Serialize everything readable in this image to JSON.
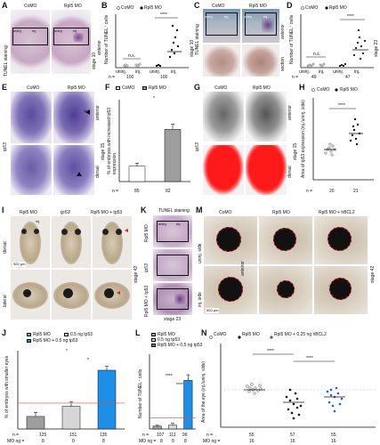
{
  "panels": {
    "A": {
      "letter": "A",
      "side_label": "TUNEL staining",
      "col1": "CoMO",
      "col2": "Rpl5 MO",
      "stage": "stage 10",
      "anterior": "anterior",
      "uninj": "uninj.",
      "inj": "inj."
    },
    "B": {
      "letter": "B",
      "legend": [
        "CoMO",
        "Rpl5 MO"
      ],
      "ylabel": "Number of TUNEL⁺ cells",
      "stage": "stage 10",
      "n_label": "n =",
      "n_values": [
        "100",
        "100"
      ],
      "x_ticks": [
        "uninj.",
        "inj.",
        "uninj.",
        "inj."
      ],
      "sig": [
        "n.s.",
        "****"
      ]
    },
    "C": {
      "letter": "C",
      "col1": "CoMO",
      "col2": "Rpl5 MO",
      "side_label": "TUNEL staining",
      "uninj": "uninj.",
      "inj": "inj.",
      "section": "section",
      "anterior": "anterior"
    },
    "D": {
      "letter": "D",
      "legend": [
        "CoMO",
        "Rpl5 MO"
      ],
      "ylabel": "Number of TUNEL⁺ cells",
      "stage": "stage 23",
      "n_label": "n =",
      "n_values": [
        "49",
        "47"
      ],
      "x_ticks": [
        "uninj.",
        "inj.",
        "uninj.",
        "inj."
      ],
      "sig": [
        "n.s.",
        "****"
      ]
    },
    "E": {
      "letter": "E",
      "col1": "CoMO",
      "col2": "Rpl5 MO",
      "gene": "tp53",
      "stage": "stage 15",
      "anterior": "anterior",
      "dorsal": "dorsal",
      "inj": "inj."
    },
    "F": {
      "letter": "F",
      "legend": [
        "CoMO",
        "Rpl5 MO"
      ],
      "ylabel": "% of embryos with increased tp53 expression",
      "n_label": "n =",
      "n_values": [
        "85",
        "82"
      ],
      "sig": "*"
    },
    "G": {
      "letter": "G",
      "col1": "CoMO",
      "col2": "Rpl5 MO",
      "gene": "tp53",
      "stage": "stage 15",
      "anterior": "anterior",
      "dorsal": "dorsal"
    },
    "H": {
      "letter": "H",
      "legend": [
        "CoMO",
        "Rpl5 MO"
      ],
      "ylabel": "Area of tp53 expression (inj./uninj. side)",
      "n_label": "n =",
      "n_values": [
        "20",
        "21"
      ],
      "sig": "****"
    },
    "I": {
      "letter": "I",
      "col1": "Rpl5 MO",
      "col2": "tp53",
      "col3": "Rpl5 MO + tp53",
      "row1": "dorsal",
      "row2": "lateral",
      "stage": "stage 42",
      "scale": "500 µm",
      "inj": "inj."
    },
    "K": {
      "letter": "K",
      "title": "TUNEL staining",
      "rows": [
        "Rpl5 MO",
        "tp53",
        "Rpl5 MO + tp53"
      ],
      "stage": "stage 23",
      "uninj": "uninj.",
      "inj": "inj."
    },
    "M": {
      "letter": "M",
      "col1": "CoMO",
      "col2": "Rpl5 MO",
      "col3": "Rpl5 MO + hBCL2",
      "row1": "uninj. side",
      "row2": "inj. side",
      "stage": "stage 42",
      "anterior": "anterior",
      "scale": "500 µm"
    },
    "J": {
      "letter": "J",
      "ylabel": "% of embryos with smaller eyes",
      "legend": [
        "Rpl5 MO",
        "0.5 ng tp53",
        "Rpl5 MO + 0.5 ng tp53"
      ],
      "n_label": "n =",
      "n_values": [
        "125",
        "151",
        "135"
      ],
      "mo_label": "MO ng =",
      "mo_values": [
        "8",
        "0",
        "8"
      ],
      "sig": [
        "*",
        "*"
      ]
    },
    "L": {
      "letter": "L",
      "ylabel": "Number of TUNEL⁺ cells",
      "legend": [
        "Rpl5 MO",
        "0.5 ng tp53",
        "Rpl5 MO + 0.5 ng tp53"
      ],
      "n_label": "n =",
      "n_values": [
        "107",
        "111",
        "99"
      ],
      "mo_label": "MO ng =",
      "mo_values": [
        "8",
        "0",
        "8"
      ],
      "sig": [
        "****",
        "****"
      ]
    },
    "N": {
      "letter": "N",
      "legend": [
        "CoMO",
        "Rpl5 MO",
        "Rpl5 MO + 0.25 ng hBCL2"
      ],
      "ylabel": "Area of the eye (inj./uninj. side)",
      "n_label": "n =",
      "n_values": [
        "55",
        "57",
        "55"
      ],
      "mo_label": "MO ng =",
      "mo_values": [
        "16",
        "16",
        "16"
      ],
      "sig": [
        "****",
        "****"
      ]
    }
  },
  "colors": {
    "como": "#ffffff",
    "rpl5": "#9e9e9e",
    "tp53": "#d6d6d6",
    "combo": "#1e8fe8",
    "sig_red": "#e34a33",
    "dashed_red": "#e02020",
    "mask_red": "#ff1a1a"
  },
  "chart_data": [
    {
      "panel": "F",
      "type": "bar",
      "categories": [
        "CoMO",
        "Rpl5 MO"
      ],
      "values": [
        15,
        51
      ],
      "errors": [
        3,
        5
      ],
      "ylabel": "% of embryos with increased tp53 expression",
      "ylim": [
        0,
        80
      ],
      "n": [
        "85",
        "82"
      ]
    },
    {
      "panel": "J",
      "type": "bar",
      "categories": [
        "Rpl5 MO",
        "0.5 ng tp53",
        "Rpl5 MO + 0.5 ng tp53"
      ],
      "values": [
        16,
        29,
        75
      ],
      "errors": [
        5,
        6,
        5
      ],
      "ylabel": "% of embryos with smaller eyes",
      "ylim": [
        0,
        100
      ],
      "n": [
        "125",
        "151",
        "135"
      ],
      "mo_ng": [
        "8",
        "0",
        "8"
      ]
    },
    {
      "panel": "L",
      "type": "bar",
      "categories": [
        "Rpl5 MO",
        "0.5 ng tp53",
        "Rpl5 MO + 0.5 ng tp53"
      ],
      "values": [
        0.3,
        0.4,
        5.2
      ],
      "errors": [
        0.1,
        0.2,
        0.6
      ],
      "ylabel": "Number of TUNEL⁺ cells",
      "ylim": [
        0,
        8
      ],
      "n": [
        "107",
        "111",
        "99"
      ],
      "mo_ng": [
        "8",
        "0",
        "8"
      ]
    },
    {
      "panel": "H",
      "type": "scatter",
      "categories": [
        "CoMO",
        "Rpl5 MO"
      ],
      "means": [
        0.95,
        1.35
      ],
      "ylabel": "Area of tp53 expression (inj./uninj. side)",
      "ylim": [
        0.0,
        2.0
      ],
      "n": [
        "20",
        "21"
      ]
    },
    {
      "panel": "N",
      "type": "scatter",
      "categories": [
        "CoMO",
        "Rpl5 MO",
        "Rpl5 MO + 0.25 ng hBCL2"
      ],
      "means": [
        1.0,
        0.78,
        0.86
      ],
      "ylabel": "Area of the eye (inj./uninj. side)",
      "ylim": [
        0.0,
        1.5
      ],
      "n": [
        "55",
        "57",
        "55"
      ]
    },
    {
      "panel": "B",
      "type": "scatter",
      "categories": [
        "CoMO uninj.",
        "CoMO inj.",
        "Rpl5 MO uninj.",
        "Rpl5 MO inj."
      ],
      "means": [
        3,
        4,
        3,
        40
      ],
      "ylabel": "Number of TUNEL⁺ cells",
      "ylim": [
        0,
        120
      ]
    },
    {
      "panel": "D",
      "type": "scatter",
      "categories": [
        "CoMO uninj.",
        "CoMO inj.",
        "Rpl5 MO uninj.",
        "Rpl5 MO inj."
      ],
      "means": [
        4,
        5,
        4,
        35
      ],
      "ylabel": "Number of TUNEL⁺ cells",
      "ylim": [
        0,
        80
      ]
    }
  ]
}
